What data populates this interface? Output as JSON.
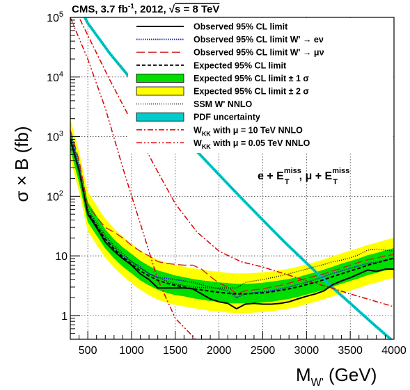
{
  "chart_data": {
    "type": "line",
    "title": "CMS,  3.7 fb⁻¹,  2012,  √s = 8 TeV",
    "title_parts": {
      "cms": "CMS,  3.7 fb",
      "sup": "-1",
      "year": ",  2012,  ",
      "sqrt": "√",
      "s": "s = 8 TeV"
    },
    "xlabel": {
      "main": "M",
      "sub": "W'",
      "unit": " (GeV)"
    },
    "ylabel": "σ × B (fb)",
    "annotation": {
      "e": "e + E",
      "esup": "miss",
      "esub": "T",
      "mid": ",  μ + E",
      "msup": "miss",
      "msub": "T"
    },
    "xlim": [
      300,
      4000
    ],
    "ylim": [
      0.4,
      100000
    ],
    "yscale": "log",
    "grid": true,
    "legend_position": "top-right",
    "x_ticks": [
      500,
      1000,
      1500,
      2000,
      2500,
      3000,
      3500,
      4000
    ],
    "y_ticks": [
      {
        "value": 1,
        "base": "1",
        "exp": ""
      },
      {
        "value": 10,
        "base": "10",
        "exp": ""
      },
      {
        "value": 100,
        "base": "10",
        "exp": "2"
      },
      {
        "value": 1000,
        "base": "10",
        "exp": "3"
      },
      {
        "value": 10000,
        "base": "10",
        "exp": "4"
      },
      {
        "value": 100000,
        "base": "10",
        "exp": "5"
      }
    ],
    "legend": [
      {
        "label": "Observed 95% CL limit",
        "style": "obs"
      },
      {
        "label": "Observed 95% CL limit W' → eν",
        "style": "obs_e"
      },
      {
        "label": "Observed 95% CL limit W' → μν",
        "style": "obs_mu"
      },
      {
        "label": "Expected 95% CL limit",
        "style": "exp"
      },
      {
        "label": "Expected 95% CL limit ± 1 σ",
        "style": "band1"
      },
      {
        "label": "Expected 95% CL limit ± 2 σ",
        "style": "band2"
      },
      {
        "label": "SSM W' NNLO",
        "style": "ssm"
      },
      {
        "label": "PDF uncertainty",
        "style": "pdf"
      },
      {
        "label": "W_KK with μ = 10 TeV NNLO",
        "parts": {
          "w": "W",
          "sub": "KK",
          "rest": " with μ = 10 TeV NNLO"
        },
        "style": "wkk10"
      },
      {
        "label": "W_KK with μ = 0.05 TeV NNLO",
        "parts": {
          "w": "W",
          "sub": "KK",
          "rest": " with μ = 0.05 TeV NNLO"
        },
        "style": "wkk005"
      }
    ],
    "colors": {
      "observed": "#000000",
      "observed_e": "#1f1fcc",
      "observed_mu": "#cc2222",
      "expected": "#000000",
      "band1": "#00dd00",
      "band2": "#ffff00",
      "ssm": "#000000",
      "pdf": "#00cccc",
      "pdf_line": "#009999",
      "wkk": "#dd0000"
    },
    "series": {
      "observed": {
        "x": [
          300,
          400,
          500,
          600,
          700,
          800,
          900,
          1000,
          1100,
          1200,
          1300,
          1400,
          1500,
          1600,
          1700,
          1800,
          1900,
          2000,
          2100,
          2200,
          2300,
          2400,
          2500,
          2600,
          2700,
          2800,
          2900,
          3000,
          3100,
          3200,
          3300,
          3400,
          3500,
          3600,
          3700,
          3800,
          3900,
          4000
        ],
        "y": [
          900,
          270,
          50,
          30,
          17,
          12,
          9,
          7,
          5,
          4,
          2.9,
          2.9,
          2.9,
          2.9,
          2.8,
          2.3,
          1.9,
          1.7,
          1.6,
          1.3,
          1.55,
          1.6,
          1.55,
          1.55,
          1.6,
          1.7,
          1.9,
          2.1,
          2.3,
          2.6,
          3.3,
          3.8,
          4.3,
          5.0,
          5.8,
          5.5,
          6.0,
          6.0
        ]
      },
      "observed_e": {
        "x": [
          300,
          400,
          500,
          600,
          700,
          800,
          900,
          1000,
          1100,
          1200,
          1300,
          1400,
          1500,
          1600,
          1700,
          1800,
          1900,
          2000,
          2100,
          2200,
          2300,
          2400,
          2500,
          2600,
          2700,
          2800,
          2900,
          3000,
          3100,
          3200,
          3300,
          3400,
          3500,
          3600,
          3700,
          3800,
          3900,
          4000
        ],
        "y": [
          1100,
          320,
          55,
          32,
          20,
          14,
          10,
          8,
          6.5,
          5,
          4.4,
          4.2,
          4.0,
          3.8,
          3.6,
          3.3,
          3.0,
          2.8,
          2.6,
          2.0,
          2.3,
          2.4,
          2.5,
          2.6,
          2.8,
          3.0,
          3.3,
          3.6,
          4.0,
          4.5,
          5.1,
          5.6,
          6.2,
          6.8,
          7.5,
          7.8,
          8.5,
          9.0
        ]
      },
      "observed_mu": {
        "x": [
          300,
          400,
          500,
          600,
          700,
          800,
          900,
          1000,
          1100,
          1200,
          1300,
          1400,
          1500,
          1600,
          1700,
          1800,
          1900,
          2000,
          2100,
          2200,
          2300,
          2400,
          2500,
          2600,
          2700,
          2800,
          2900,
          3000,
          3100,
          3200,
          3300,
          3400,
          3500,
          3600,
          3700,
          3800,
          3900,
          4000
        ],
        "y": [
          1300,
          400,
          70,
          45,
          30,
          25,
          20,
          15,
          12,
          10,
          8,
          7.5,
          7.2,
          7.0,
          7.0,
          6.0,
          4.5,
          3.5,
          3.0,
          2.3,
          2.6,
          2.7,
          2.8,
          3.0,
          3.2,
          3.5,
          3.8,
          4.2,
          4.6,
          5.0,
          5.6,
          6.2,
          7.0,
          7.8,
          8.6,
          9.2,
          10,
          10.5
        ]
      },
      "expected": {
        "x": [
          300,
          400,
          500,
          600,
          700,
          800,
          900,
          1000,
          1100,
          1200,
          1300,
          1400,
          1500,
          1600,
          1700,
          1800,
          1900,
          2000,
          2100,
          2200,
          2300,
          2400,
          2500,
          2600,
          2700,
          2800,
          2900,
          3000,
          3100,
          3200,
          3300,
          3400,
          3500,
          3600,
          3700,
          3800,
          3900,
          4000
        ],
        "y": [
          900,
          260,
          55,
          32,
          19,
          13,
          9.5,
          7.3,
          5.6,
          4.6,
          3.9,
          3.5,
          3.2,
          3.0,
          2.8,
          2.7,
          2.55,
          2.45,
          2.35,
          2.3,
          2.3,
          2.35,
          2.4,
          2.5,
          2.65,
          2.8,
          3.0,
          3.3,
          3.6,
          4.0,
          4.5,
          5.0,
          5.6,
          6.2,
          7.0,
          7.6,
          8.4,
          9.2
        ]
      },
      "band1": {
        "x": [
          300,
          400,
          500,
          600,
          700,
          800,
          900,
          1000,
          1100,
          1200,
          1300,
          1400,
          1500,
          1600,
          1700,
          1800,
          1900,
          2000,
          2100,
          2200,
          2300,
          2400,
          2500,
          2600,
          2700,
          2800,
          2900,
          3000,
          3100,
          3200,
          3300,
          3400,
          3500,
          3600,
          3700,
          3800,
          3900,
          4000
        ],
        "lo": [
          600,
          170,
          37,
          22,
          13.3,
          9.1,
          6.6,
          5.1,
          3.9,
          3.2,
          2.7,
          2.4,
          2.2,
          2.1,
          1.95,
          1.85,
          1.75,
          1.7,
          1.6,
          1.6,
          1.6,
          1.6,
          1.65,
          1.7,
          1.8,
          1.9,
          2.05,
          2.25,
          2.45,
          2.7,
          3.05,
          3.4,
          3.8,
          4.2,
          4.75,
          5.2,
          5.7,
          6.2
        ],
        "hi": [
          1300,
          380,
          80,
          47,
          28,
          19,
          14,
          10.8,
          8.3,
          6.8,
          5.7,
          5.2,
          4.7,
          4.4,
          4.1,
          3.9,
          3.75,
          3.6,
          3.5,
          3.4,
          3.4,
          3.45,
          3.55,
          3.7,
          3.9,
          4.1,
          4.4,
          4.85,
          5.3,
          5.9,
          6.6,
          7.4,
          8.2,
          9.1,
          10.3,
          11.2,
          12.4,
          13.5
        ]
      },
      "band2": {
        "x": [
          300,
          400,
          500,
          600,
          700,
          800,
          900,
          1000,
          1100,
          1200,
          1300,
          1400,
          1500,
          1600,
          1700,
          1800,
          1900,
          2000,
          2100,
          2200,
          2300,
          2400,
          2500,
          2600,
          2700,
          2800,
          2900,
          3000,
          3100,
          3200,
          3300,
          3400,
          3500,
          3600,
          3700,
          3800,
          3900,
          4000
        ],
        "lo": [
          420,
          120,
          26,
          15.5,
          9.3,
          6.4,
          4.6,
          3.5,
          2.7,
          2.2,
          1.85,
          1.65,
          1.5,
          1.42,
          1.33,
          1.27,
          1.2,
          1.16,
          1.12,
          1.1,
          1.1,
          1.12,
          1.14,
          1.18,
          1.24,
          1.31,
          1.41,
          1.55,
          1.69,
          1.88,
          2.1,
          2.35,
          2.62,
          2.9,
          3.28,
          3.57,
          3.94,
          4.3
        ],
        "hi": [
          2000,
          560,
          120,
          70,
          42,
          29,
          21,
          16,
          12.3,
          10.1,
          8.6,
          7.7,
          7.0,
          6.6,
          6.2,
          5.9,
          5.6,
          5.4,
          5.2,
          5.1,
          5.1,
          5.2,
          5.3,
          5.5,
          5.8,
          6.1,
          6.6,
          7.2,
          7.9,
          8.8,
          9.9,
          11,
          12.3,
          13.6,
          15.3,
          16.7,
          18.4,
          20.2
        ]
      },
      "ssm": {
        "x": [
          300,
          400,
          500,
          600,
          700,
          800,
          900,
          1000,
          1100,
          1200,
          1300,
          1400,
          1500,
          1600,
          1700,
          1800,
          1900,
          2000,
          2100,
          2200,
          2300,
          2400,
          2500,
          2600,
          2700,
          2800,
          2900,
          3000,
          3100,
          3200,
          3300,
          3400,
          3500,
          3600,
          3700,
          3800,
          3900,
          4000
        ],
        "y": [
          1000,
          300,
          60,
          36,
          22,
          15,
          11,
          8,
          6.2,
          5.0,
          4.3,
          3.8,
          3.4,
          3.2,
          3.0,
          2.95,
          2.9,
          2.9,
          2.9,
          2.9,
          3.6,
          3.8,
          4.0,
          4.3,
          4.6,
          5.0,
          5.5,
          6.0,
          6.6,
          7.2,
          8.0,
          8.5,
          9.3,
          10.5,
          12.5,
          13.0,
          12.5,
          12.0
        ]
      },
      "pdf": {
        "x": [
          300,
          500,
          750,
          1000,
          1250,
          1500,
          1750,
          2000,
          2250,
          2500,
          2750,
          3000,
          3250,
          3500,
          3750,
          4000
        ],
        "y": [
          300000,
          80000,
          25000,
          9000,
          3500,
          1400,
          560,
          230,
          95,
          40,
          17,
          7.6,
          3.4,
          1.6,
          0.75,
          0.36
        ]
      },
      "wkk10": {
        "x": [
          300,
          500,
          750,
          1000,
          1250,
          1500,
          1750,
          2000,
          2250,
          2500,
          2750,
          3000,
          3250,
          3500,
          3750,
          4000
        ],
        "y": [
          200000,
          50000,
          9000,
          1800,
          350,
          75,
          25,
          12,
          8,
          6.5,
          5.0,
          3.8,
          3.0,
          2.3,
          1.8,
          1.4
        ]
      },
      "wkk005": {
        "x": [
          300,
          500,
          700,
          900,
          1100,
          1300,
          1500,
          1700,
          1800,
          1900,
          2000
        ],
        "y": [
          100000,
          20000,
          3000,
          300,
          35,
          4,
          0.9,
          0.45,
          0.3,
          0.2,
          0.15
        ]
      }
    }
  }
}
